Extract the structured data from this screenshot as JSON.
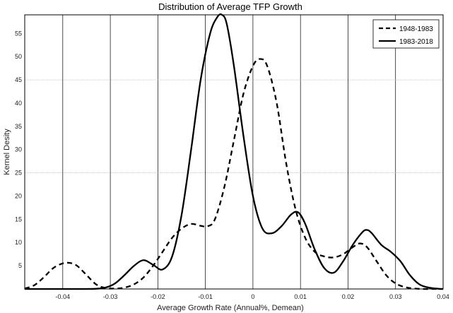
{
  "chart_data": {
    "type": "line",
    "title": "Distribution of Average TFP Growth",
    "xlabel": "Average Growth Rate (Annual%, Demean)",
    "ylabel": "Kernel Desity",
    "xlim": [
      -0.048,
      0.04
    ],
    "ylim": [
      0,
      59
    ],
    "xticks": [
      -0.04,
      -0.03,
      -0.02,
      -0.01,
      0,
      0.01,
      0.02,
      0.03,
      0.04
    ],
    "xtick_labels": [
      "-0.04",
      "-0.03",
      "-0.02",
      "-0.01",
      "0",
      "0.01",
      "0.02",
      "0.03",
      "0.04"
    ],
    "yticks": [
      5,
      10,
      15,
      20,
      25,
      30,
      35,
      40,
      45,
      50,
      55
    ],
    "ytick_labels": [
      "5",
      "10",
      "15",
      "20",
      "25",
      "30",
      "35",
      "40",
      "45",
      "50",
      "55"
    ],
    "legend_position": "top-right",
    "series": [
      {
        "name": "1948-1983",
        "style": "dashed",
        "color": "#000000",
        "x": [
          -0.048,
          -0.046,
          -0.044,
          -0.042,
          -0.04,
          -0.0385,
          -0.037,
          -0.035,
          -0.033,
          -0.031,
          -0.029,
          -0.027,
          -0.025,
          -0.023,
          -0.021,
          -0.019,
          -0.017,
          -0.015,
          -0.013,
          -0.011,
          -0.0095,
          -0.008,
          -0.006,
          -0.004,
          -0.002,
          0.0,
          0.0015,
          0.003,
          0.005,
          0.007,
          0.009,
          0.011,
          0.013,
          0.015,
          0.017,
          0.019,
          0.021,
          0.0225,
          0.024,
          0.026,
          0.028,
          0.03,
          0.032,
          0.034,
          0.036,
          0.038,
          0.04
        ],
        "y": [
          0.1,
          0.8,
          2.5,
          4.5,
          5.5,
          5.6,
          5.0,
          3.0,
          1.0,
          0.2,
          0.1,
          0.3,
          1.0,
          2.5,
          5.0,
          8.0,
          11.0,
          13.0,
          14.0,
          13.6,
          13.5,
          15.0,
          22.0,
          32.0,
          42.0,
          48.0,
          49.5,
          48.0,
          40.0,
          27.0,
          17.0,
          11.0,
          8.0,
          7.0,
          6.8,
          7.5,
          9.0,
          9.8,
          9.0,
          6.0,
          3.0,
          1.2,
          0.4,
          0.1,
          0.0,
          0.0,
          0.0
        ]
      },
      {
        "name": "1983-2018",
        "style": "solid",
        "color": "#000000",
        "x": [
          -0.048,
          -0.044,
          -0.04,
          -0.036,
          -0.033,
          -0.031,
          -0.029,
          -0.027,
          -0.025,
          -0.023,
          -0.021,
          -0.019,
          -0.017,
          -0.015,
          -0.013,
          -0.011,
          -0.009,
          -0.0075,
          -0.0065,
          -0.0055,
          -0.004,
          -0.002,
          0.0,
          0.002,
          0.004,
          0.006,
          0.008,
          0.0095,
          0.011,
          0.013,
          0.015,
          0.017,
          0.019,
          0.021,
          0.023,
          0.024,
          0.025,
          0.027,
          0.029,
          0.031,
          0.033,
          0.035,
          0.037,
          0.039,
          0.04
        ],
        "y": [
          0.0,
          0.0,
          0.0,
          0.0,
          0.05,
          0.3,
          1.2,
          3.0,
          5.0,
          6.2,
          5.2,
          4.2,
          7.0,
          16.0,
          30.0,
          45.0,
          55.0,
          58.5,
          59.0,
          57.0,
          48.0,
          33.0,
          20.0,
          13.0,
          12.0,
          13.5,
          16.0,
          16.5,
          14.0,
          8.5,
          4.5,
          3.5,
          6.0,
          9.5,
          12.2,
          12.7,
          12.0,
          9.5,
          8.0,
          6.0,
          3.0,
          1.0,
          0.3,
          0.05,
          0.0
        ]
      }
    ]
  }
}
